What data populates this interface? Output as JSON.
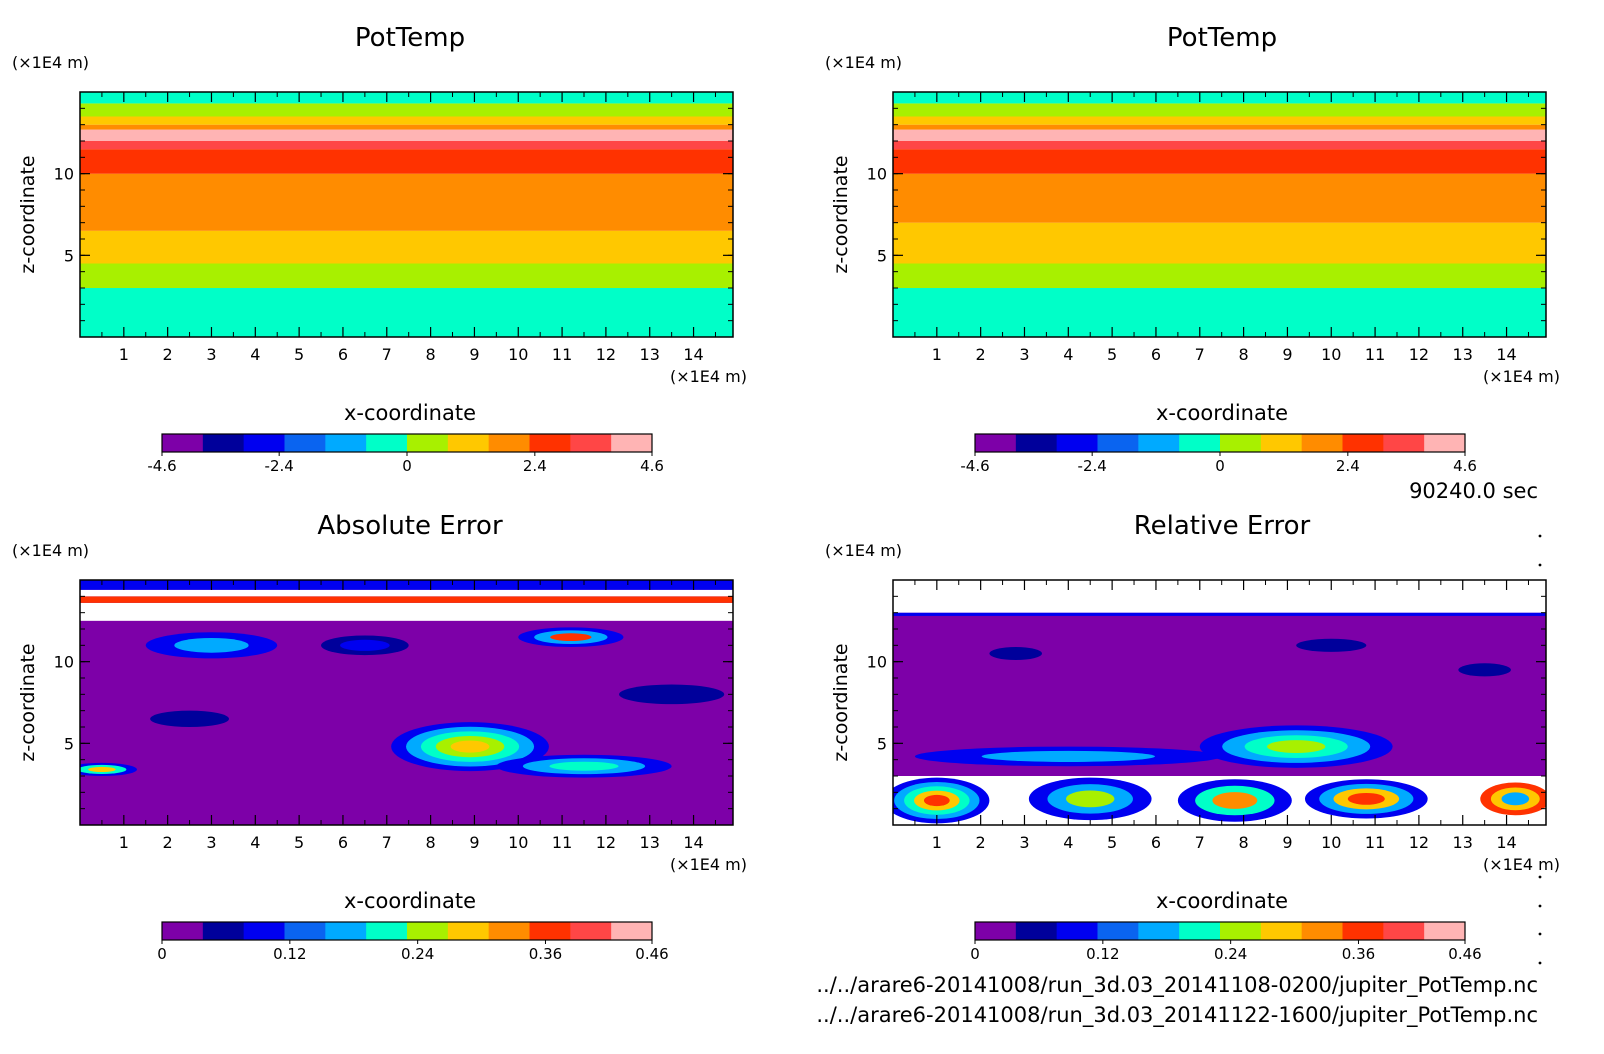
{
  "time_label": "90240.0 sec",
  "files": [
    "../../arare6-20141008/run_3d.03_20141108-0200/jupiter_PotTemp.nc",
    "../../arare6-20141008/run_3d.03_20141122-1600/jupiter_PotTemp.nc"
  ],
  "palette": [
    "#7d00a8",
    "#00009b",
    "#0000f0",
    "#0a64f0",
    "#00aaff",
    "#00ffc8",
    "#a8f000",
    "#ffc800",
    "#ff8c00",
    "#ff3200",
    "#ff4646",
    "#ffb4b4"
  ],
  "chart_data": [
    {
      "type": "heatmap",
      "title": "PotTemp",
      "xlabel": "x-coordinate",
      "ylabel": "z-coordinate",
      "x_unit": "(×1E4 m)",
      "y_unit": "(×1E4 m)",
      "xlim": [
        0,
        14.9
      ],
      "ylim": [
        0,
        15
      ],
      "x_ticks": [
        "1",
        "2",
        "3",
        "4",
        "5",
        "6",
        "7",
        "8",
        "9",
        "10",
        "11",
        "12",
        "13",
        "14"
      ],
      "y_ticks": [
        "5",
        "10"
      ],
      "colorbar": {
        "min": -4.6,
        "max": 4.6,
        "levels": 12,
        "tick_labels": [
          "-4.6",
          "-2.4",
          "0",
          "2.4",
          "4.6"
        ],
        "tick_values": [
          -4.6,
          -2.4,
          0,
          2.4,
          4.6
        ]
      },
      "bands": [
        {
          "z0": 0,
          "z1": 3.0,
          "color": "#00ffc8"
        },
        {
          "z0": 3.0,
          "z1": 4.5,
          "color": "#a8f000"
        },
        {
          "z0": 4.5,
          "z1": 6.5,
          "color": "#ffc800"
        },
        {
          "z0": 6.5,
          "z1": 10.0,
          "color": "#ff8c00"
        },
        {
          "z0": 10.0,
          "z1": 11.5,
          "color": "#ff3200"
        },
        {
          "z0": 11.5,
          "z1": 12.0,
          "color": "#ff4646"
        },
        {
          "z0": 12.0,
          "z1": 12.7,
          "color": "#ffb4b4"
        },
        {
          "z0": 12.7,
          "z1": 13.0,
          "color": "#ff8c00"
        },
        {
          "z0": 13.0,
          "z1": 13.5,
          "color": "#ffc800"
        },
        {
          "z0": 13.5,
          "z1": 14.3,
          "color": "#a8f000"
        },
        {
          "z0": 14.3,
          "z1": 15.0,
          "color": "#00ffc8"
        }
      ]
    },
    {
      "type": "heatmap",
      "title": "PotTemp",
      "xlabel": "x-coordinate",
      "ylabel": "z-coordinate",
      "x_unit": "(×1E4 m)",
      "y_unit": "(×1E4 m)",
      "xlim": [
        0,
        14.9
      ],
      "ylim": [
        0,
        15
      ],
      "x_ticks": [
        "1",
        "2",
        "3",
        "4",
        "5",
        "6",
        "7",
        "8",
        "9",
        "10",
        "11",
        "12",
        "13",
        "14"
      ],
      "y_ticks": [
        "5",
        "10"
      ],
      "colorbar": {
        "min": -4.6,
        "max": 4.6,
        "levels": 12,
        "tick_labels": [
          "-4.6",
          "-2.4",
          "0",
          "2.4",
          "4.6"
        ],
        "tick_values": [
          -4.6,
          -2.4,
          0,
          2.4,
          4.6
        ]
      },
      "bands": [
        {
          "z0": 0,
          "z1": 3.0,
          "color": "#00ffc8"
        },
        {
          "z0": 3.0,
          "z1": 4.5,
          "color": "#a8f000"
        },
        {
          "z0": 4.5,
          "z1": 7.0,
          "color": "#ffc800"
        },
        {
          "z0": 7.0,
          "z1": 10.0,
          "color": "#ff8c00"
        },
        {
          "z0": 10.0,
          "z1": 11.5,
          "color": "#ff3200"
        },
        {
          "z0": 11.5,
          "z1": 12.0,
          "color": "#ff4646"
        },
        {
          "z0": 12.0,
          "z1": 12.7,
          "color": "#ffb4b4"
        },
        {
          "z0": 12.7,
          "z1": 13.0,
          "color": "#ff8c00"
        },
        {
          "z0": 13.0,
          "z1": 13.5,
          "color": "#ffc800"
        },
        {
          "z0": 13.5,
          "z1": 14.3,
          "color": "#a8f000"
        },
        {
          "z0": 14.3,
          "z1": 15.0,
          "color": "#00ffc8"
        }
      ]
    },
    {
      "type": "heatmap",
      "title": "Absolute Error",
      "xlabel": "x-coordinate",
      "ylabel": "z-coordinate",
      "x_unit": "(×1E4 m)",
      "y_unit": "(×1E4 m)",
      "xlim": [
        0,
        14.9
      ],
      "ylim": [
        0,
        15
      ],
      "x_ticks": [
        "1",
        "2",
        "3",
        "4",
        "5",
        "6",
        "7",
        "8",
        "9",
        "10",
        "11",
        "12",
        "13",
        "14"
      ],
      "y_ticks": [
        "5",
        "10"
      ],
      "colorbar": {
        "min": 0,
        "max": 0.46,
        "levels": 12,
        "tick_labels": [
          "0",
          "0.12",
          "0.24",
          "0.36",
          "0.46"
        ],
        "tick_values": [
          0,
          0.12,
          0.24,
          0.36,
          0.46
        ]
      },
      "background": "#7d00a8",
      "bands": [
        {
          "z0": 12.5,
          "z1": 13.6,
          "color": "#ffffff"
        },
        {
          "z0": 13.6,
          "z1": 14.0,
          "color": "#ff3200"
        },
        {
          "z0": 14.0,
          "z1": 14.4,
          "color": "#ffffff"
        },
        {
          "z0": 14.4,
          "z1": 15.0,
          "color": "#0000f0"
        }
      ],
      "blobs": [
        {
          "x": 8.9,
          "z": 4.8,
          "rx": 1.8,
          "rz": 1.5,
          "colors": [
            "#0000f0",
            "#00aaff",
            "#00ffc8",
            "#a8f000",
            "#ffc800"
          ]
        },
        {
          "x": 11.5,
          "z": 3.6,
          "rx": 2.0,
          "rz": 0.7,
          "colors": [
            "#0000f0",
            "#00aaff",
            "#00ffc8"
          ]
        },
        {
          "x": 11.2,
          "z": 11.5,
          "rx": 1.2,
          "rz": 0.6,
          "colors": [
            "#0000f0",
            "#00aaff",
            "#ff3200"
          ]
        },
        {
          "x": 3.0,
          "z": 11.0,
          "rx": 1.5,
          "rz": 0.8,
          "colors": [
            "#0000f0",
            "#00aaff"
          ]
        },
        {
          "x": 0.5,
          "z": 3.4,
          "rx": 0.8,
          "rz": 0.4,
          "colors": [
            "#0000f0",
            "#00ffc8",
            "#ffc800"
          ]
        },
        {
          "x": 6.5,
          "z": 11.0,
          "rx": 1.0,
          "rz": 0.6,
          "colors": [
            "#00009b",
            "#0000f0"
          ]
        },
        {
          "x": 2.5,
          "z": 6.5,
          "rx": 0.9,
          "rz": 0.5,
          "colors": [
            "#00009b"
          ]
        },
        {
          "x": 13.5,
          "z": 8.0,
          "rx": 1.2,
          "rz": 0.6,
          "colors": [
            "#00009b"
          ]
        }
      ]
    },
    {
      "type": "heatmap",
      "title": "Relative Error",
      "xlabel": "x-coordinate",
      "ylabel": "z-coordinate",
      "x_unit": "(×1E4 m)",
      "y_unit": "(×1E4 m)",
      "xlim": [
        0,
        14.9
      ],
      "ylim": [
        0,
        15
      ],
      "x_ticks": [
        "1",
        "2",
        "3",
        "4",
        "5",
        "6",
        "7",
        "8",
        "9",
        "10",
        "11",
        "12",
        "13",
        "14"
      ],
      "y_ticks": [
        "5",
        "10"
      ],
      "colorbar": {
        "min": 0,
        "max": 0.46,
        "levels": 12,
        "tick_labels": [
          "0",
          "0.12",
          "0.24",
          "0.36",
          "0.46"
        ],
        "tick_values": [
          0,
          0.12,
          0.24,
          0.36,
          0.46
        ]
      },
      "background": "#7d00a8",
      "bands": [
        {
          "z0": 0,
          "z1": 3.0,
          "color": "#ffffff"
        },
        {
          "z0": 12.8,
          "z1": 13.0,
          "color": "#0000f0"
        },
        {
          "z0": 13.0,
          "z1": 15.0,
          "color": "#ffffff"
        }
      ],
      "blobs": [
        {
          "x": 9.2,
          "z": 4.8,
          "rx": 2.2,
          "rz": 1.3,
          "colors": [
            "#0000f0",
            "#00aaff",
            "#00ffc8",
            "#a8f000"
          ]
        },
        {
          "x": 4.0,
          "z": 4.2,
          "rx": 3.5,
          "rz": 0.6,
          "colors": [
            "#0000f0",
            "#00aaff"
          ]
        },
        {
          "x": 1.0,
          "z": 1.5,
          "rx": 1.2,
          "rz": 1.4,
          "colors": [
            "#0000f0",
            "#00aaff",
            "#00ffc8",
            "#ffc800",
            "#ff3200"
          ]
        },
        {
          "x": 4.5,
          "z": 1.6,
          "rx": 1.4,
          "rz": 1.3,
          "colors": [
            "#0000f0",
            "#00aaff",
            "#a8f000"
          ]
        },
        {
          "x": 7.8,
          "z": 1.5,
          "rx": 1.3,
          "rz": 1.3,
          "colors": [
            "#0000f0",
            "#00ffc8",
            "#ff8c00"
          ]
        },
        {
          "x": 10.8,
          "z": 1.6,
          "rx": 1.4,
          "rz": 1.2,
          "colors": [
            "#0000f0",
            "#00aaff",
            "#ffc800",
            "#ff3200"
          ]
        },
        {
          "x": 14.2,
          "z": 1.6,
          "rx": 0.8,
          "rz": 1.0,
          "colors": [
            "#ff3200",
            "#ffc800",
            "#00aaff"
          ]
        },
        {
          "x": 2.8,
          "z": 10.5,
          "rx": 0.6,
          "rz": 0.4,
          "colors": [
            "#00009b"
          ]
        },
        {
          "x": 10.0,
          "z": 11.0,
          "rx": 0.8,
          "rz": 0.4,
          "colors": [
            "#00009b"
          ]
        },
        {
          "x": 13.5,
          "z": 9.5,
          "rx": 0.6,
          "rz": 0.4,
          "colors": [
            "#00009b"
          ]
        }
      ]
    }
  ]
}
